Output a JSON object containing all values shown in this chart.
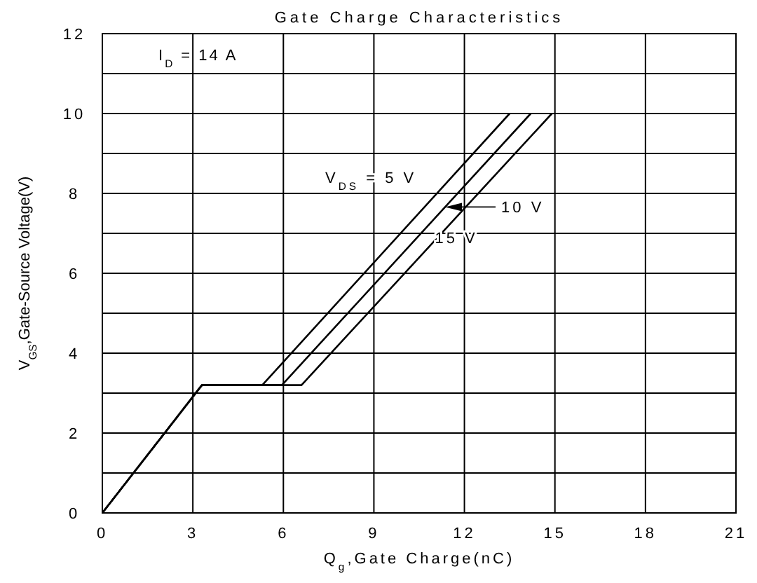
{
  "chart_data": {
    "type": "line",
    "title": "Gate Charge Characteristics",
    "xlabel": "Q$_{g}$,Gate Charge(nC)",
    "ylabel": "V$_{GS}$,Gate-Source Voltage(V)",
    "annotations": [
      "I$_{D}$ = 14 A"
    ],
    "series": [
      {
        "name": "V$_{DS}$ = 5 V",
        "color": "#000000",
        "x": [
          0,
          3.3,
          5.3,
          13.5
        ],
        "values": [
          0,
          3.2,
          3.2,
          10
        ]
      },
      {
        "name": "10 V",
        "color": "#000000",
        "x": [
          0,
          3.3,
          5.95,
          14.2
        ],
        "values": [
          0,
          3.2,
          3.2,
          10
        ]
      },
      {
        "name": "15 V",
        "color": "#000000",
        "x": [
          0,
          3.3,
          6.6,
          14.9
        ],
        "values": [
          0,
          3.2,
          3.2,
          10
        ]
      }
    ],
    "xlim": [
      0,
      21
    ],
    "xticks": [
      0,
      3,
      6,
      9,
      12,
      15,
      18,
      21
    ],
    "ylim": [
      0,
      12
    ],
    "yticks": [
      0,
      {
        "value": 1,
        "label": null
      },
      2,
      {
        "value": 3,
        "label": null
      },
      4,
      {
        "value": 5,
        "label": null
      },
      6,
      {
        "value": 7,
        "label": null
      },
      8,
      {
        "value": 9,
        "label": null
      },
      10,
      {
        "value": 11,
        "label": null
      },
      12
    ],
    "grid": true,
    "marker": "none",
    "line_style": "solid"
  }
}
